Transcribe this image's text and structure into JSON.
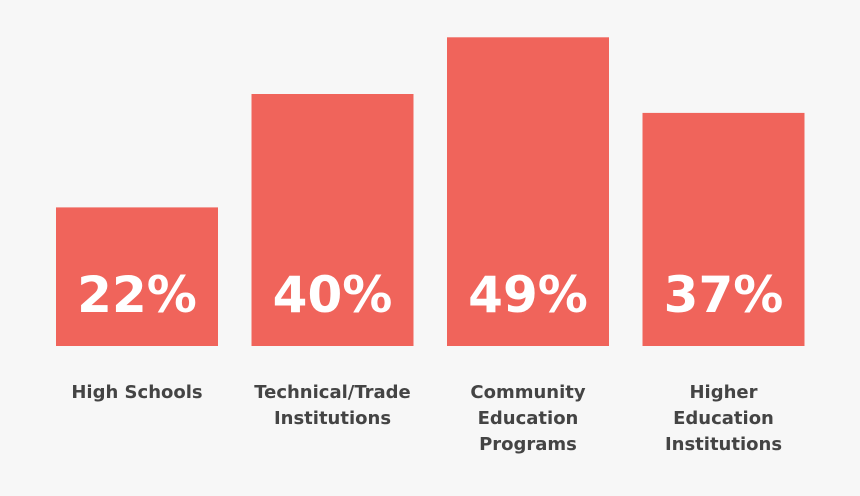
{
  "chart_data": {
    "type": "bar",
    "categories": [
      "High Schools",
      "Technical/Trade Institutions",
      "Community Education Programs",
      "Higher Education Institutions"
    ],
    "category_lines": [
      [
        "High Schools"
      ],
      [
        "Technical/Trade",
        "Institutions"
      ],
      [
        "Community",
        "Education",
        "Programs"
      ],
      [
        "Higher",
        "Education",
        "Institutions"
      ]
    ],
    "values": [
      22,
      40,
      49,
      37
    ],
    "value_labels": [
      "22%",
      "40%",
      "49%",
      "37%"
    ],
    "unit": "%",
    "title": "",
    "xlabel": "",
    "ylabel": "",
    "grid": false,
    "legend": "none",
    "colors": {
      "bar": "#f0645b",
      "background": "#f7f7f7",
      "value_text": "#ffffff",
      "label_text": "#444444"
    }
  }
}
